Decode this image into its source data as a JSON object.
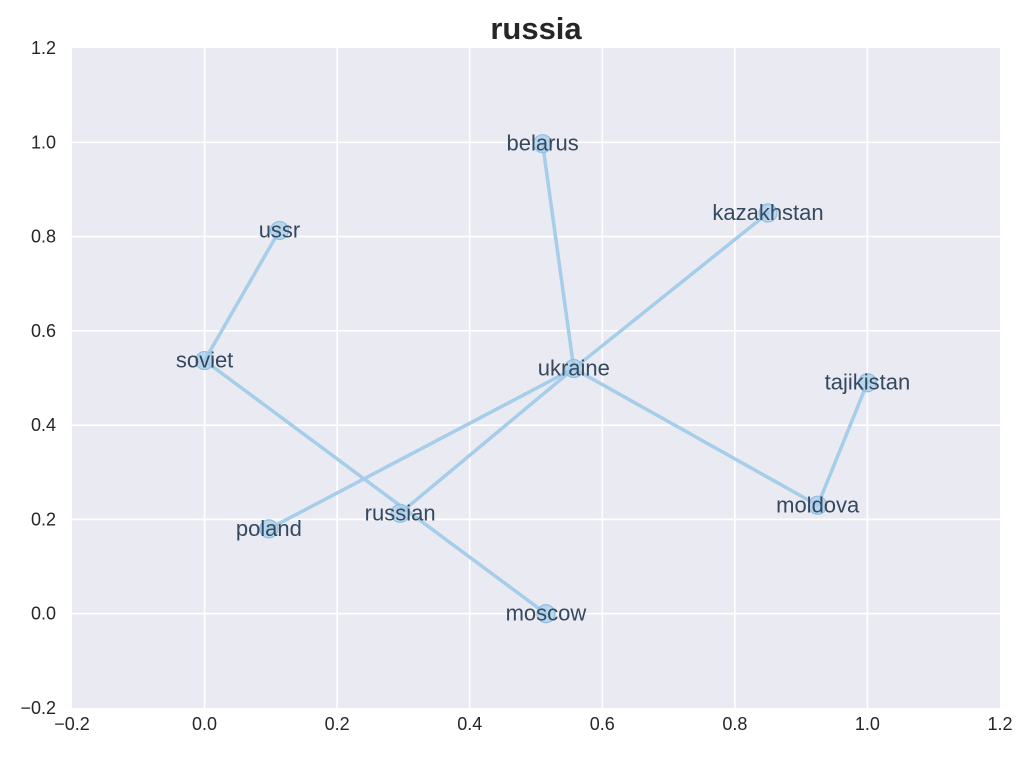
{
  "chart_data": {
    "type": "scatter",
    "title": "russia",
    "xlim": [
      -0.2,
      1.2
    ],
    "ylim": [
      -0.2,
      1.2
    ],
    "x_ticks": [
      "−0.2",
      "0.0",
      "0.2",
      "0.4",
      "0.6",
      "0.8",
      "1.0",
      "1.2"
    ],
    "y_ticks": [
      "−0.2",
      "0.0",
      "0.2",
      "0.4",
      "0.6",
      "0.8",
      "1.0",
      "1.2"
    ],
    "grid": true,
    "background_color": "#eaeaf2",
    "line_color": "#a6cdea",
    "label_color": "#34495e",
    "points": [
      {
        "label": "ussr",
        "x": 0.113,
        "y": 0.813
      },
      {
        "label": "soviet",
        "x": 0.0,
        "y": 0.537
      },
      {
        "label": "belarus",
        "x": 0.51,
        "y": 0.997
      },
      {
        "label": "kazakhstan",
        "x": 0.85,
        "y": 0.85
      },
      {
        "label": "ukraine",
        "x": 0.557,
        "y": 0.52
      },
      {
        "label": "tajikistan",
        "x": 1.0,
        "y": 0.49
      },
      {
        "label": "moldova",
        "x": 0.925,
        "y": 0.23
      },
      {
        "label": "poland",
        "x": 0.097,
        "y": 0.18
      },
      {
        "label": "russian",
        "x": 0.295,
        "y": 0.213
      },
      {
        "label": "moscow",
        "x": 0.515,
        "y": 0.0
      }
    ],
    "edges": [
      [
        "ussr",
        "soviet"
      ],
      [
        "soviet",
        "moscow"
      ],
      [
        "belarus",
        "ukraine"
      ],
      [
        "ukraine",
        "kazakhstan"
      ],
      [
        "ukraine",
        "poland"
      ],
      [
        "ukraine",
        "russian"
      ],
      [
        "ukraine",
        "moldova"
      ],
      [
        "moldova",
        "tajikistan"
      ]
    ]
  }
}
